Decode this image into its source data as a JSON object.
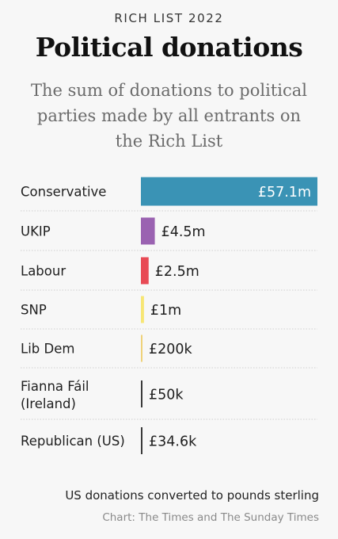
{
  "header": {
    "kicker": "RICH LIST 2022",
    "title": "Political donations",
    "subtitle": "The sum of donations to political parties made by all entrants on the Rich List"
  },
  "footer": {
    "note": "US donations converted to pounds sterling",
    "source": "Chart: The Times and The Sunday Times"
  },
  "chart_data": {
    "type": "bar",
    "orientation": "horizontal",
    "title": "Political donations",
    "subtitle": "The sum of donations to political parties made by all entrants on the Rich List",
    "xlabel": "",
    "ylabel": "",
    "unit": "£",
    "grid": false,
    "categories": [
      "Conservative",
      "UKIP",
      "Labour",
      "SNP",
      "Lib Dem",
      "Fianna Fáil (Ireland)",
      "Republican (US)"
    ],
    "values": [
      57100000,
      4500000,
      2500000,
      1000000,
      200000,
      50000,
      34600
    ],
    "value_labels": [
      "£57.1m",
      "£4.5m",
      "£2.5m",
      "£1m",
      "£200k",
      "£50k",
      "£34.6k"
    ],
    "colors": [
      "#3a93b5",
      "#9a62b1",
      "#e84a55",
      "#f7e675",
      "#efd27a",
      "#3a3a3a",
      "#3a3a3a"
    ]
  }
}
